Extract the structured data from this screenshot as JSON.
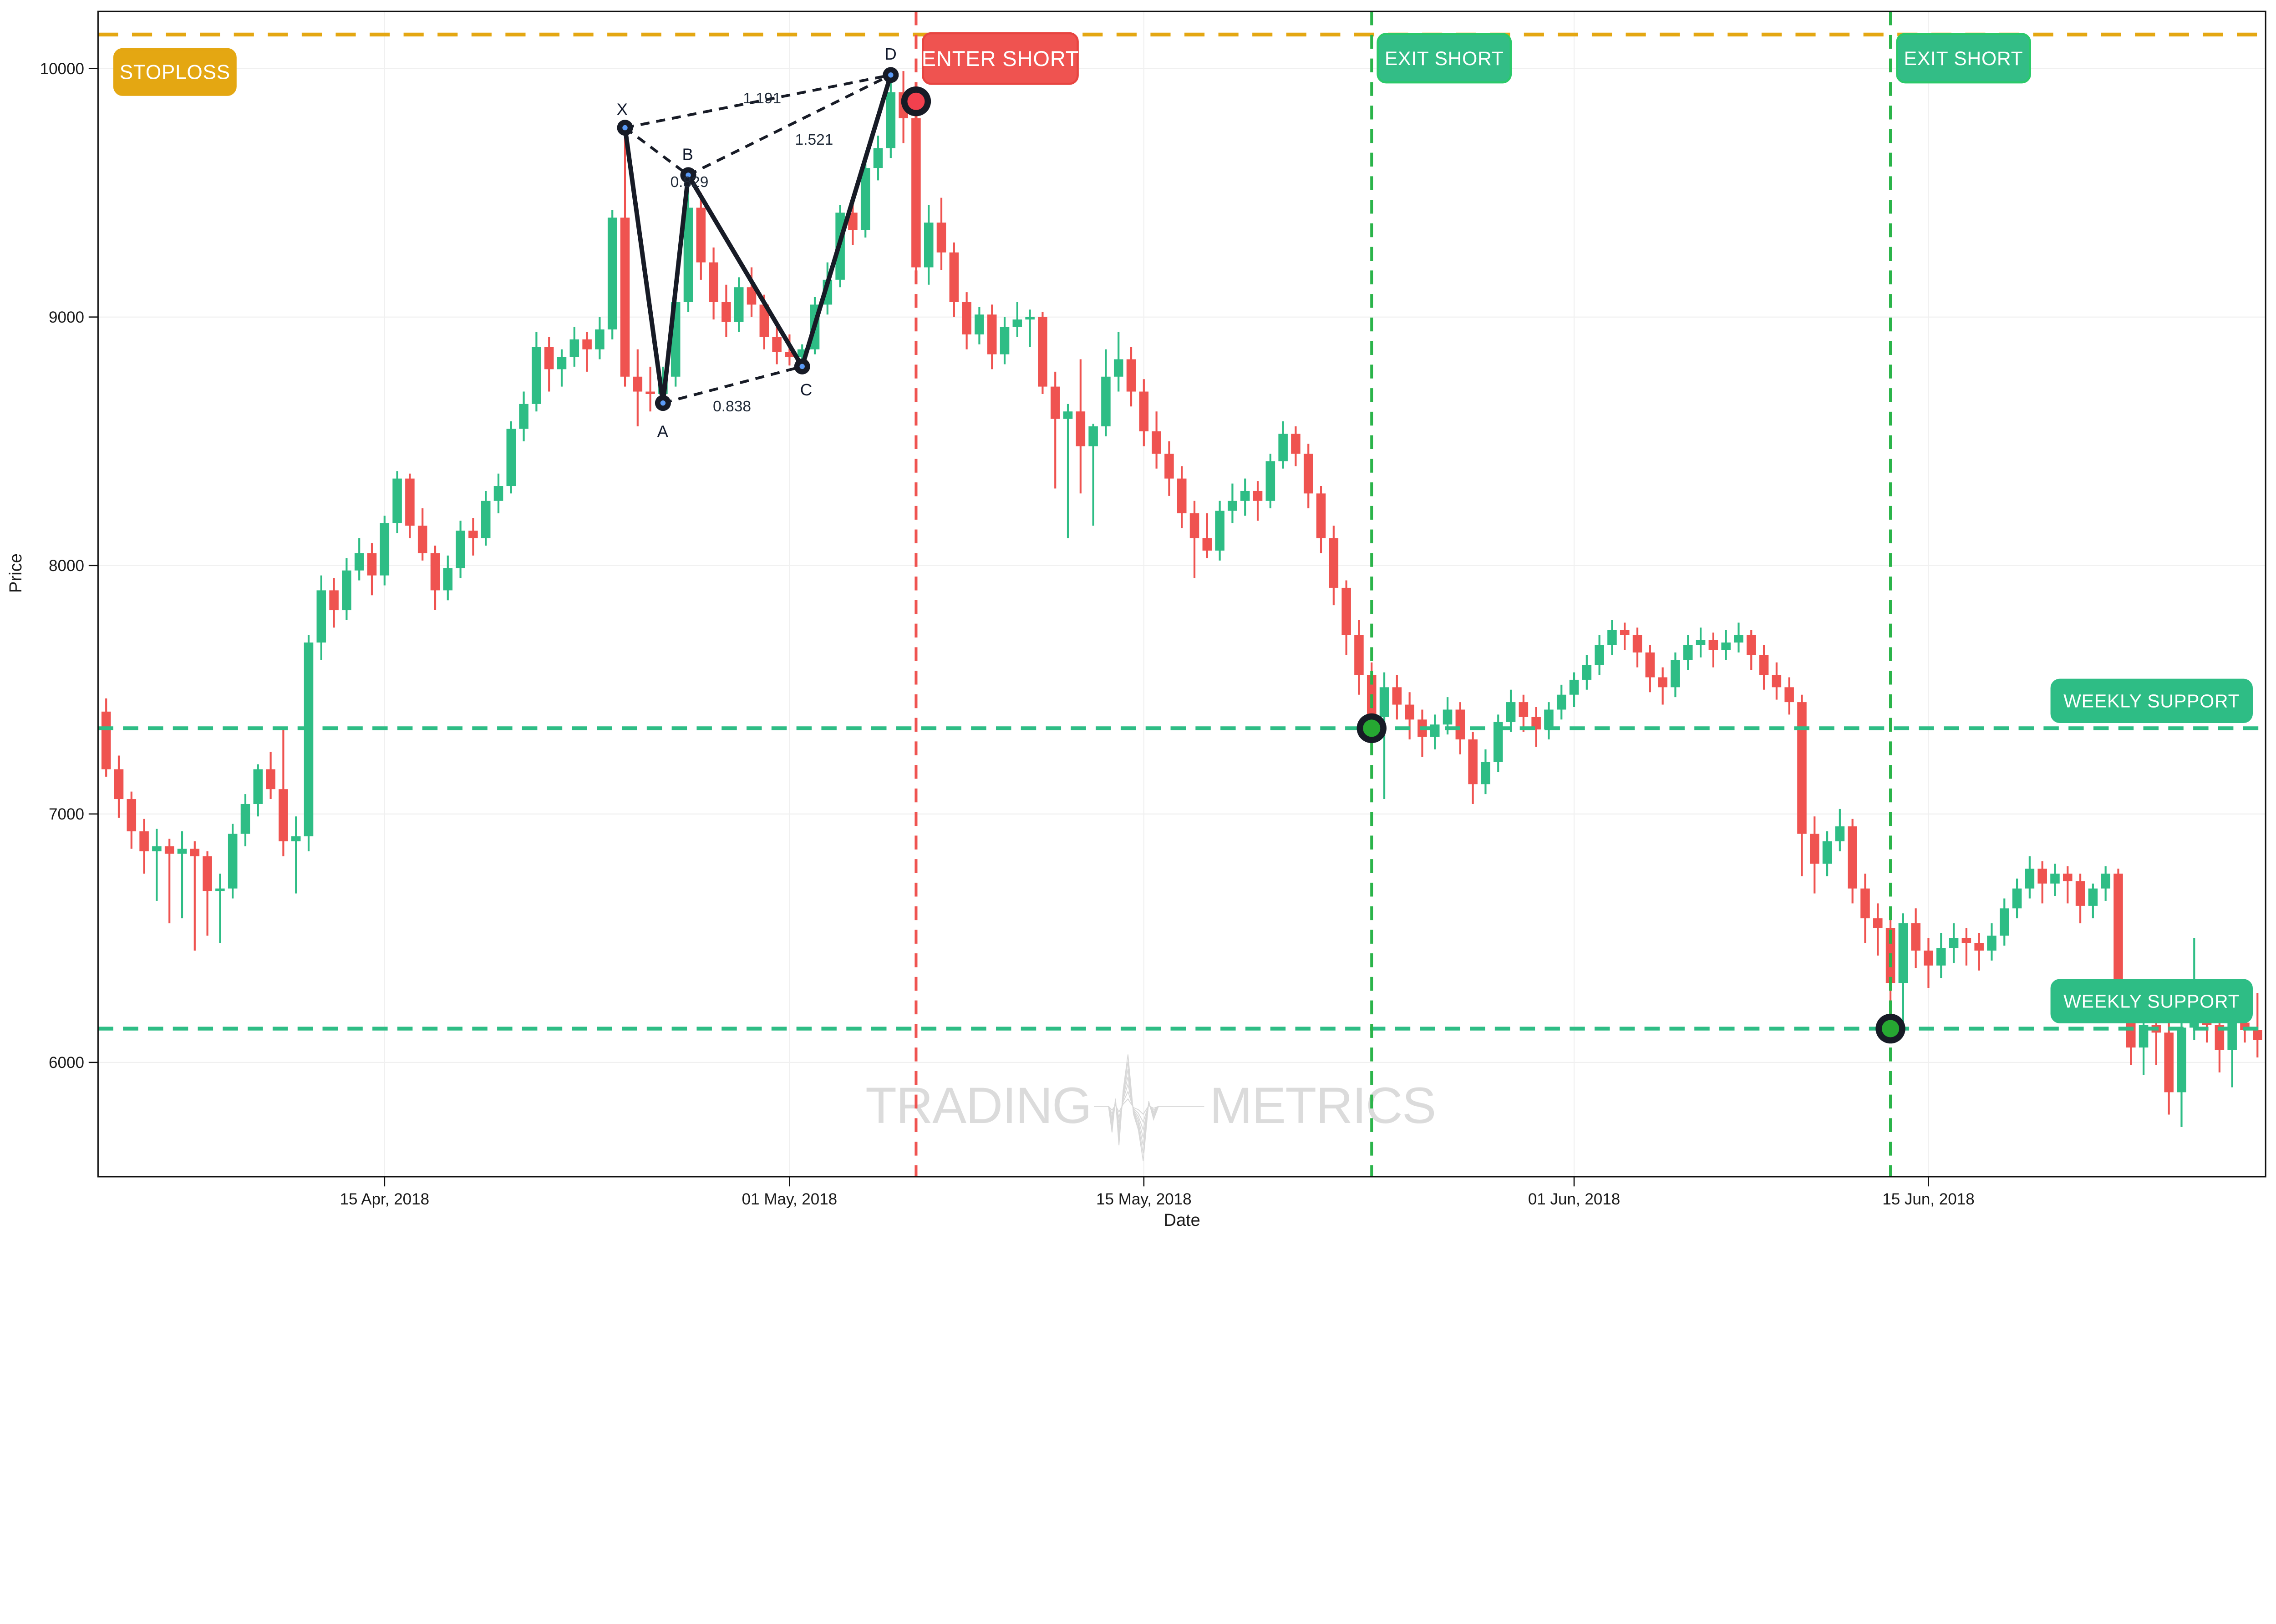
{
  "axis": {
    "ylabel": "Price",
    "xlabel": "Date",
    "y_ticks": [
      {
        "label": "10000",
        "value": 10000
      },
      {
        "label": "9000",
        "value": 9000
      },
      {
        "label": "8000",
        "value": 8000
      },
      {
        "label": "7000",
        "value": 7000
      },
      {
        "label": "6000",
        "value": 6000
      }
    ],
    "x_ticks": [
      {
        "label": "15 Apr, 2018",
        "index": 22
      },
      {
        "label": "01 May, 2018",
        "index": 54
      },
      {
        "label": "15 May, 2018",
        "index": 82
      },
      {
        "label": "01 Jun, 2018",
        "index": 116
      },
      {
        "label": "15 Jun, 2018",
        "index": 144
      }
    ]
  },
  "events": {
    "stoploss": {
      "label": "STOPLOSS",
      "price": 10137,
      "color": "#E4A712"
    },
    "enter_short": {
      "label": "ENTER SHORT",
      "index": 64,
      "price": 9868,
      "line_color": "#EF5350",
      "fill": "#EF5350",
      "border": "#E74440"
    },
    "exit_short_1": {
      "label": "EXIT SHORT",
      "index": 100,
      "price": 7345,
      "line_color": "#2BB44A",
      "fill": "#33BD86",
      "border": "#2AC96A"
    },
    "exit_short_2": {
      "label": "EXIT SHORT",
      "index": 141,
      "price": 6136,
      "line_color": "#2BB44A",
      "fill": "#33BD86",
      "border": "#2AC96A"
    },
    "weekly_support_1": {
      "label": "WEEKLY SUPPORT",
      "price": 7345,
      "color": "#2EBD85"
    },
    "weekly_support_2": {
      "label": "WEEKLY SUPPORT",
      "price": 6136,
      "color": "#2EBD85"
    }
  },
  "pattern": {
    "points": [
      {
        "label": "X",
        "index": 41,
        "price": 9762
      },
      {
        "label": "A",
        "index": 44,
        "price": 8654
      },
      {
        "label": "B",
        "index": 46,
        "price": 9571
      },
      {
        "label": "C",
        "index": 55,
        "price": 8801
      },
      {
        "label": "D",
        "index": 62,
        "price": 9974
      }
    ],
    "ratios": [
      {
        "text": "0.829"
      },
      {
        "text": "1.191"
      },
      {
        "text": "1.521"
      },
      {
        "text": "0.838"
      }
    ]
  },
  "watermark": {
    "left": "TRADING",
    "right": "METRICS"
  },
  "chart_data": {
    "type": "candlestick",
    "title": "",
    "xlabel": "Date",
    "ylabel": "Price",
    "start_date": "2018-04-04",
    "interval_hours": 12,
    "ylim": [
      5540,
      10230
    ],
    "grid": true,
    "colors": {
      "up": "#2EBD85",
      "down": "#EF5350"
    },
    "ohlc": [
      [
        7412,
        7465,
        7150,
        7180
      ],
      [
        7180,
        7235,
        6985,
        7060
      ],
      [
        7060,
        7090,
        6860,
        6930
      ],
      [
        6930,
        6980,
        6760,
        6850
      ],
      [
        6850,
        6940,
        6650,
        6870
      ],
      [
        6870,
        6900,
        6560,
        6840
      ],
      [
        6840,
        6930,
        6580,
        6860
      ],
      [
        6860,
        6890,
        6450,
        6830
      ],
      [
        6830,
        6850,
        6510,
        6690
      ],
      [
        6690,
        6760,
        6480,
        6700
      ],
      [
        6700,
        6960,
        6660,
        6920
      ],
      [
        6920,
        7080,
        6870,
        7040
      ],
      [
        7040,
        7200,
        6990,
        7180
      ],
      [
        7180,
        7250,
        7060,
        7100
      ],
      [
        7100,
        7345,
        6830,
        6890
      ],
      [
        6890,
        6990,
        6680,
        6910
      ],
      [
        6910,
        7720,
        6850,
        7690
      ],
      [
        7690,
        7960,
        7620,
        7900
      ],
      [
        7900,
        7950,
        7750,
        7820
      ],
      [
        7820,
        8030,
        7780,
        7980
      ],
      [
        7980,
        8110,
        7940,
        8050
      ],
      [
        8050,
        8090,
        7880,
        7960
      ],
      [
        7960,
        8200,
        7920,
        8170
      ],
      [
        8170,
        8380,
        8130,
        8350
      ],
      [
        8350,
        8370,
        8110,
        8160
      ],
      [
        8160,
        8230,
        8020,
        8050
      ],
      [
        8050,
        8080,
        7820,
        7900
      ],
      [
        7900,
        8040,
        7860,
        7990
      ],
      [
        7990,
        8180,
        7950,
        8140
      ],
      [
        8140,
        8190,
        8040,
        8110
      ],
      [
        8110,
        8300,
        8080,
        8260
      ],
      [
        8260,
        8370,
        8210,
        8320
      ],
      [
        8320,
        8580,
        8290,
        8550
      ],
      [
        8550,
        8700,
        8500,
        8650
      ],
      [
        8650,
        8940,
        8620,
        8880
      ],
      [
        8880,
        8920,
        8700,
        8790
      ],
      [
        8790,
        8870,
        8720,
        8840
      ],
      [
        8840,
        8960,
        8800,
        8910
      ],
      [
        8910,
        8940,
        8780,
        8870
      ],
      [
        8870,
        9000,
        8830,
        8950
      ],
      [
        8950,
        9430,
        8910,
        9400
      ],
      [
        9400,
        9762,
        8720,
        8760
      ],
      [
        8760,
        8870,
        8560,
        8700
      ],
      [
        8700,
        8800,
        8620,
        8690
      ],
      [
        8690,
        8800,
        8654,
        8760
      ],
      [
        8760,
        9100,
        8720,
        9060
      ],
      [
        9060,
        9571,
        9020,
        9440
      ],
      [
        9440,
        9500,
        9150,
        9220
      ],
      [
        9220,
        9280,
        8990,
        9060
      ],
      [
        9060,
        9130,
        8920,
        8980
      ],
      [
        8980,
        9160,
        8940,
        9120
      ],
      [
        9120,
        9200,
        9000,
        9050
      ],
      [
        9050,
        9090,
        8870,
        8920
      ],
      [
        8920,
        8980,
        8810,
        8860
      ],
      [
        8860,
        8930,
        8805,
        8840
      ],
      [
        8840,
        8890,
        8801,
        8870
      ],
      [
        8870,
        9080,
        8850,
        9050
      ],
      [
        9050,
        9220,
        9010,
        9150
      ],
      [
        9150,
        9450,
        9120,
        9420
      ],
      [
        9420,
        9470,
        9290,
        9350
      ],
      [
        9350,
        9640,
        9320,
        9600
      ],
      [
        9600,
        9730,
        9550,
        9680
      ],
      [
        9680,
        9974,
        9640,
        9905
      ],
      [
        9905,
        9990,
        9700,
        9800
      ],
      [
        9800,
        9868,
        9140,
        9200
      ],
      [
        9200,
        9450,
        9130,
        9380
      ],
      [
        9380,
        9480,
        9190,
        9260
      ],
      [
        9260,
        9300,
        9000,
        9060
      ],
      [
        9060,
        9100,
        8870,
        8930
      ],
      [
        8930,
        9040,
        8890,
        9010
      ],
      [
        9010,
        9050,
        8790,
        8850
      ],
      [
        8850,
        9000,
        8810,
        8960
      ],
      [
        8960,
        9060,
        8920,
        8990
      ],
      [
        8990,
        9030,
        8880,
        9000
      ],
      [
        9000,
        9020,
        8690,
        8720
      ],
      [
        8720,
        8780,
        8310,
        8590
      ],
      [
        8590,
        8650,
        8110,
        8620
      ],
      [
        8620,
        8830,
        8290,
        8480
      ],
      [
        8480,
        8570,
        8160,
        8560
      ],
      [
        8560,
        8870,
        8520,
        8760
      ],
      [
        8760,
        8940,
        8700,
        8830
      ],
      [
        8830,
        8880,
        8640,
        8700
      ],
      [
        8700,
        8750,
        8480,
        8540
      ],
      [
        8540,
        8620,
        8390,
        8450
      ],
      [
        8450,
        8500,
        8280,
        8350
      ],
      [
        8350,
        8400,
        8150,
        8210
      ],
      [
        8210,
        8260,
        7950,
        8110
      ],
      [
        8110,
        8210,
        8030,
        8060
      ],
      [
        8060,
        8260,
        8020,
        8220
      ],
      [
        8220,
        8330,
        8170,
        8260
      ],
      [
        8260,
        8350,
        8200,
        8300
      ],
      [
        8300,
        8340,
        8180,
        8260
      ],
      [
        8260,
        8450,
        8230,
        8420
      ],
      [
        8420,
        8580,
        8390,
        8530
      ],
      [
        8530,
        8560,
        8400,
        8450
      ],
      [
        8450,
        8490,
        8230,
        8290
      ],
      [
        8290,
        8320,
        8050,
        8110
      ],
      [
        8110,
        8160,
        7840,
        7910
      ],
      [
        7910,
        7940,
        7640,
        7720
      ],
      [
        7720,
        7780,
        7480,
        7560
      ],
      [
        7560,
        7610,
        7345,
        7390
      ],
      [
        7390,
        7570,
        7060,
        7510
      ],
      [
        7510,
        7560,
        7380,
        7440
      ],
      [
        7440,
        7490,
        7300,
        7380
      ],
      [
        7380,
        7420,
        7230,
        7310
      ],
      [
        7310,
        7400,
        7260,
        7360
      ],
      [
        7360,
        7470,
        7320,
        7420
      ],
      [
        7420,
        7450,
        7240,
        7300
      ],
      [
        7300,
        7330,
        7040,
        7120
      ],
      [
        7120,
        7260,
        7080,
        7210
      ],
      [
        7210,
        7400,
        7170,
        7370
      ],
      [
        7370,
        7500,
        7330,
        7450
      ],
      [
        7450,
        7480,
        7330,
        7390
      ],
      [
        7390,
        7430,
        7270,
        7340
      ],
      [
        7340,
        7450,
        7300,
        7420
      ],
      [
        7420,
        7520,
        7380,
        7480
      ],
      [
        7480,
        7570,
        7430,
        7540
      ],
      [
        7540,
        7640,
        7500,
        7600
      ],
      [
        7600,
        7720,
        7560,
        7680
      ],
      [
        7680,
        7780,
        7640,
        7740
      ],
      [
        7740,
        7770,
        7660,
        7720
      ],
      [
        7720,
        7750,
        7590,
        7650
      ],
      [
        7650,
        7680,
        7490,
        7550
      ],
      [
        7550,
        7590,
        7440,
        7510
      ],
      [
        7510,
        7650,
        7470,
        7620
      ],
      [
        7620,
        7720,
        7580,
        7680
      ],
      [
        7680,
        7750,
        7630,
        7700
      ],
      [
        7700,
        7730,
        7590,
        7660
      ],
      [
        7660,
        7740,
        7620,
        7690
      ],
      [
        7690,
        7770,
        7650,
        7720
      ],
      [
        7720,
        7740,
        7580,
        7640
      ],
      [
        7640,
        7680,
        7500,
        7560
      ],
      [
        7560,
        7610,
        7460,
        7510
      ],
      [
        7510,
        7550,
        7400,
        7450
      ],
      [
        7450,
        7480,
        6750,
        6920
      ],
      [
        6920,
        6990,
        6680,
        6800
      ],
      [
        6800,
        6930,
        6750,
        6890
      ],
      [
        6890,
        7020,
        6850,
        6950
      ],
      [
        6950,
        6980,
        6640,
        6700
      ],
      [
        6700,
        6760,
        6480,
        6580
      ],
      [
        6580,
        6640,
        6430,
        6540
      ],
      [
        6540,
        6580,
        6136,
        6320
      ],
      [
        6320,
        6600,
        6150,
        6560
      ],
      [
        6560,
        6620,
        6380,
        6450
      ],
      [
        6450,
        6500,
        6300,
        6390
      ],
      [
        6390,
        6520,
        6340,
        6460
      ],
      [
        6460,
        6560,
        6400,
        6500
      ],
      [
        6500,
        6540,
        6390,
        6480
      ],
      [
        6480,
        6520,
        6370,
        6450
      ],
      [
        6450,
        6560,
        6410,
        6510
      ],
      [
        6510,
        6660,
        6470,
        6620
      ],
      [
        6620,
        6740,
        6580,
        6700
      ],
      [
        6700,
        6830,
        6660,
        6780
      ],
      [
        6780,
        6810,
        6640,
        6720
      ],
      [
        6720,
        6800,
        6670,
        6760
      ],
      [
        6760,
        6790,
        6640,
        6730
      ],
      [
        6730,
        6760,
        6560,
        6630
      ],
      [
        6630,
        6720,
        6580,
        6700
      ],
      [
        6700,
        6790,
        6650,
        6760
      ],
      [
        6760,
        6780,
        6180,
        6270
      ],
      [
        6270,
        6300,
        5990,
        6060
      ],
      [
        6060,
        6170,
        5950,
        6150
      ],
      [
        6150,
        6230,
        5990,
        6120
      ],
      [
        6120,
        6160,
        5790,
        5880
      ],
      [
        5880,
        6160,
        5740,
        6140
      ],
      [
        6140,
        6500,
        6090,
        6180
      ],
      [
        6180,
        6280,
        6080,
        6150
      ],
      [
        6150,
        6200,
        5960,
        6050
      ],
      [
        6050,
        6190,
        5900,
        6160
      ],
      [
        6160,
        6230,
        6080,
        6130
      ],
      [
        6130,
        6280,
        6020,
        6090
      ]
    ]
  }
}
